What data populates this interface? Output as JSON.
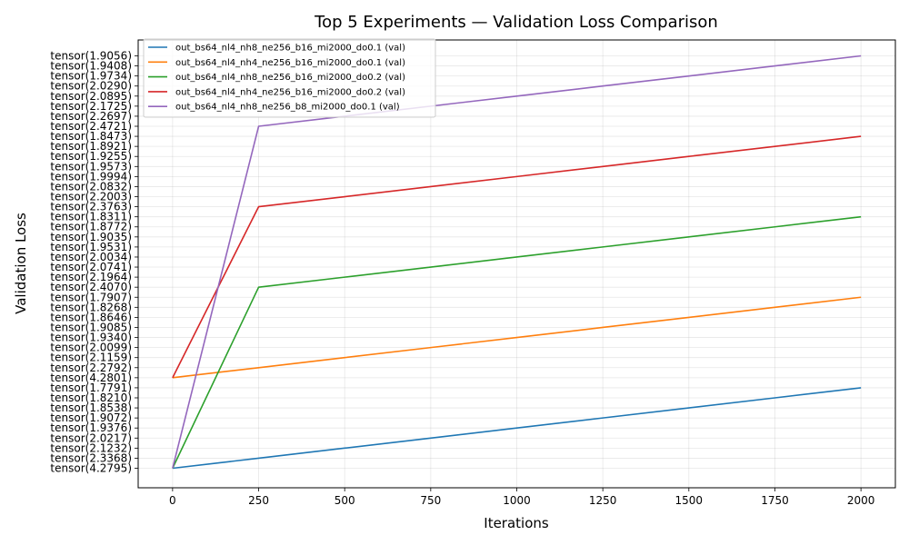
{
  "chart_data": {
    "type": "line",
    "title": "Top 5 Experiments — Validation Loss Comparison",
    "xlabel": "Iterations",
    "ylabel": "Validation Loss",
    "xlim": [
      -100,
      2100
    ],
    "x_ticks": [
      0,
      250,
      500,
      750,
      1000,
      1250,
      1500,
      1750,
      2000
    ],
    "grid": true,
    "legend_position": "upper-left",
    "y_categories": [
      "tensor(4.2795)",
      "tensor(2.3368)",
      "tensor(2.1232)",
      "tensor(2.0217)",
      "tensor(1.9376)",
      "tensor(1.9072)",
      "tensor(1.8538)",
      "tensor(1.8210)",
      "tensor(1.7791)",
      "tensor(4.2801)",
      "tensor(2.2792)",
      "tensor(2.1159)",
      "tensor(2.0099)",
      "tensor(1.9340)",
      "tensor(1.9085)",
      "tensor(1.8646)",
      "tensor(1.8268)",
      "tensor(1.7907)",
      "tensor(2.4070)",
      "tensor(2.1964)",
      "tensor(2.0741)",
      "tensor(2.0034)",
      "tensor(1.9531)",
      "tensor(1.9035)",
      "tensor(1.8772)",
      "tensor(1.8311)",
      "tensor(2.3763)",
      "tensor(2.2003)",
      "tensor(2.0832)",
      "tensor(1.9994)",
      "tensor(1.9573)",
      "tensor(1.9255)",
      "tensor(1.8921)",
      "tensor(1.8473)",
      "tensor(2.4721)",
      "tensor(2.2697)",
      "tensor(2.1725)",
      "tensor(2.0895)",
      "tensor(2.0290)",
      "tensor(1.9734)",
      "tensor(1.9408)",
      "tensor(1.9056)"
    ],
    "series": [
      {
        "name": "out_bs64_nl4_nh8_ne256_b16_mi2000_do0.1 (val)",
        "color": "#1f77b4",
        "x": [
          0,
          250,
          500,
          750,
          1000,
          1250,
          1500,
          1750,
          2000
        ],
        "y": [
          "tensor(4.2795)",
          "tensor(2.3368)",
          "tensor(2.1232)",
          "tensor(2.0217)",
          "tensor(1.9376)",
          "tensor(1.9072)",
          "tensor(1.8538)",
          "tensor(1.8210)",
          "tensor(1.7791)"
        ]
      },
      {
        "name": "out_bs64_nl4_nh4_ne256_b16_mi2000_do0.1 (val)",
        "color": "#ff7f0e",
        "x": [
          0,
          250,
          500,
          750,
          1000,
          1250,
          1500,
          1750,
          2000
        ],
        "y": [
          "tensor(4.2801)",
          "tensor(2.2792)",
          "tensor(2.1159)",
          "tensor(2.0099)",
          "tensor(1.9340)",
          "tensor(1.9085)",
          "tensor(1.8646)",
          "tensor(1.8268)",
          "tensor(1.7907)"
        ]
      },
      {
        "name": "out_bs64_nl4_nh8_ne256_b16_mi2000_do0.2 (val)",
        "color": "#2ca02c",
        "x": [
          0,
          250,
          500,
          750,
          1000,
          1250,
          1500,
          1750,
          2000
        ],
        "y": [
          "tensor(4.2795)",
          "tensor(2.4070)",
          "tensor(2.1964)",
          "tensor(2.0741)",
          "tensor(2.0034)",
          "tensor(1.9531)",
          "tensor(1.9035)",
          "tensor(1.8772)",
          "tensor(1.8311)"
        ]
      },
      {
        "name": "out_bs64_nl4_nh4_ne256_b16_mi2000_do0.2 (val)",
        "color": "#d62728",
        "x": [
          0,
          250,
          500,
          750,
          1000,
          1250,
          1500,
          1750,
          2000
        ],
        "y": [
          "tensor(4.2801)",
          "tensor(2.3763)",
          "tensor(2.2003)",
          "tensor(2.0832)",
          "tensor(1.9994)",
          "tensor(1.9573)",
          "tensor(1.9255)",
          "tensor(1.8921)",
          "tensor(1.8473)"
        ]
      },
      {
        "name": "out_bs64_nl4_nh8_ne256_b8_mi2000_do0.1 (val)",
        "color": "#9467bd",
        "x": [
          0,
          250,
          500,
          750,
          1000,
          1250,
          1500,
          1750,
          2000
        ],
        "y": [
          "tensor(4.2795)",
          "tensor(2.4721)",
          "tensor(2.2697)",
          "tensor(2.1725)",
          "tensor(2.0895)",
          "tensor(2.0290)",
          "tensor(1.9734)",
          "tensor(1.9408)",
          "tensor(1.9056)"
        ]
      }
    ]
  }
}
